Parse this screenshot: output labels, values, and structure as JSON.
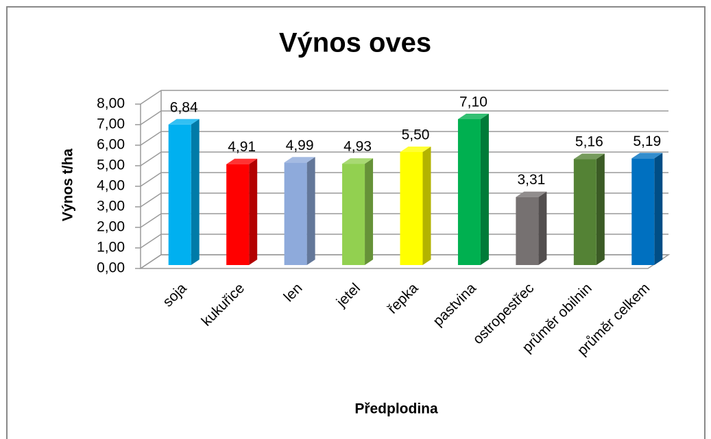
{
  "chart_data": {
    "type": "bar3d",
    "title": "Výnos oves",
    "categories": [
      "soja",
      "kukuřice",
      "len",
      "jetel",
      "řepka",
      "pastvina",
      "ostropestřec",
      "průměr obilnin",
      "průměr celkem"
    ],
    "values": [
      6.84,
      4.91,
      4.99,
      4.93,
      5.5,
      7.1,
      3.31,
      5.16,
      5.19
    ],
    "value_labels": [
      "6,84",
      "4,91",
      "4,99",
      "4,93",
      "5,50",
      "7,10",
      "3,31",
      "5,16",
      "5,19"
    ],
    "colors": [
      "#00b0f0",
      "#ff0000",
      "#8eaadb",
      "#92d050",
      "#ffff00",
      "#00b050",
      "#767171",
      "#548235",
      "#0070c0"
    ],
    "ylim": [
      0,
      8
    ],
    "yticks": [
      {
        "value": 0,
        "label": "0,00"
      },
      {
        "value": 1,
        "label": "1,00"
      },
      {
        "value": 2,
        "label": "2,00"
      },
      {
        "value": 3,
        "label": "3,00"
      },
      {
        "value": 4,
        "label": "4,00"
      },
      {
        "value": 5,
        "label": "5,00"
      },
      {
        "value": 6,
        "label": "6,00"
      },
      {
        "value": 7,
        "label": "7,00"
      },
      {
        "value": 8,
        "label": "8,00"
      }
    ],
    "grid": true,
    "x_label": "Předplodina",
    "y_label": "Výnos t/ha"
  }
}
